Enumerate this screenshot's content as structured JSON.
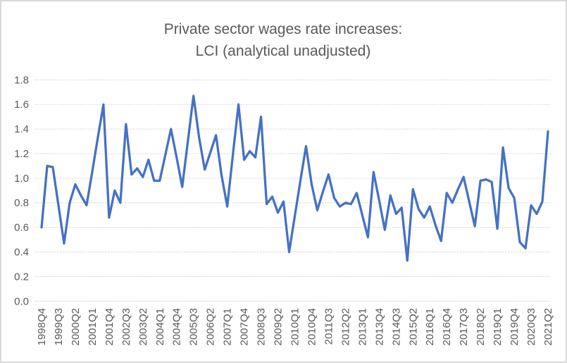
{
  "chart": {
    "title_line1": "Private sector wages rate increases:",
    "title_line2": "LCI (analytical unadjusted)",
    "colors": {
      "line": "#4472C4",
      "gridline": "#D9D9D9",
      "text": "#595959",
      "border": "#D9D9D9",
      "background": "#FFFFFF"
    },
    "x_tick_every": 3
  },
  "chart_data": {
    "type": "line",
    "title": "Private sector wages rate increases: LCI (analytical unadjusted)",
    "xlabel": "",
    "ylabel": "",
    "ylim": [
      0.0,
      1.8
    ],
    "y_tick_step": 0.2,
    "grid": true,
    "legend": false,
    "categories": [
      "1998Q4",
      "1999Q1",
      "1999Q2",
      "1999Q3",
      "1999Q4",
      "2000Q1",
      "2000Q2",
      "2000Q3",
      "2000Q4",
      "2001Q1",
      "2001Q2",
      "2001Q3",
      "2001Q4",
      "2002Q1",
      "2002Q2",
      "2002Q3",
      "2002Q4",
      "2003Q1",
      "2003Q2",
      "2003Q3",
      "2003Q4",
      "2004Q1",
      "2004Q2",
      "2004Q3",
      "2004Q4",
      "2005Q1",
      "2005Q2",
      "2005Q3",
      "2005Q4",
      "2006Q1",
      "2006Q2",
      "2006Q3",
      "2006Q4",
      "2007Q1",
      "2007Q2",
      "2007Q3",
      "2007Q4",
      "2008Q1",
      "2008Q2",
      "2008Q3",
      "2008Q4",
      "2009Q1",
      "2009Q2",
      "2009Q3",
      "2009Q4",
      "2010Q1",
      "2010Q2",
      "2010Q3",
      "2010Q4",
      "2011Q1",
      "2011Q2",
      "2011Q3",
      "2011Q4",
      "2012Q1",
      "2012Q2",
      "2012Q3",
      "2012Q4",
      "2013Q1",
      "2013Q2",
      "2013Q3",
      "2013Q4",
      "2014Q1",
      "2014Q2",
      "2014Q3",
      "2014Q4",
      "2015Q1",
      "2015Q2",
      "2015Q3",
      "2015Q4",
      "2016Q1",
      "2016Q2",
      "2016Q3",
      "2016Q4",
      "2017Q1",
      "2017Q2",
      "2017Q3",
      "2017Q4",
      "2018Q1",
      "2018Q2",
      "2018Q3",
      "2018Q4",
      "2019Q1",
      "2019Q2",
      "2019Q3",
      "2019Q4",
      "2020Q1",
      "2020Q2",
      "2020Q3",
      "2020Q4",
      "2021Q1",
      "2021Q2"
    ],
    "values": [
      0.6,
      1.1,
      1.09,
      0.78,
      0.47,
      0.8,
      0.95,
      0.86,
      0.78,
      1.05,
      1.33,
      1.6,
      0.68,
      0.9,
      0.8,
      1.44,
      1.03,
      1.08,
      1.01,
      1.15,
      0.98,
      0.98,
      1.19,
      1.4,
      1.17,
      0.93,
      1.3,
      1.67,
      1.33,
      1.07,
      1.21,
      1.35,
      1.02,
      0.77,
      1.19,
      1.6,
      1.15,
      1.22,
      1.17,
      1.5,
      0.79,
      0.85,
      0.72,
      0.81,
      0.4,
      0.69,
      0.98,
      1.26,
      0.95,
      0.74,
      0.89,
      1.03,
      0.84,
      0.77,
      0.8,
      0.79,
      0.88,
      0.7,
      0.52,
      1.05,
      0.82,
      0.58,
      0.86,
      0.71,
      0.76,
      0.33,
      0.91,
      0.75,
      0.68,
      0.77,
      0.62,
      0.49,
      0.88,
      0.8,
      0.91,
      1.01,
      0.81,
      0.61,
      0.98,
      0.99,
      0.97,
      0.59,
      1.25,
      0.92,
      0.84,
      0.48,
      0.43,
      0.78,
      0.71,
      0.81,
      1.38
    ]
  }
}
